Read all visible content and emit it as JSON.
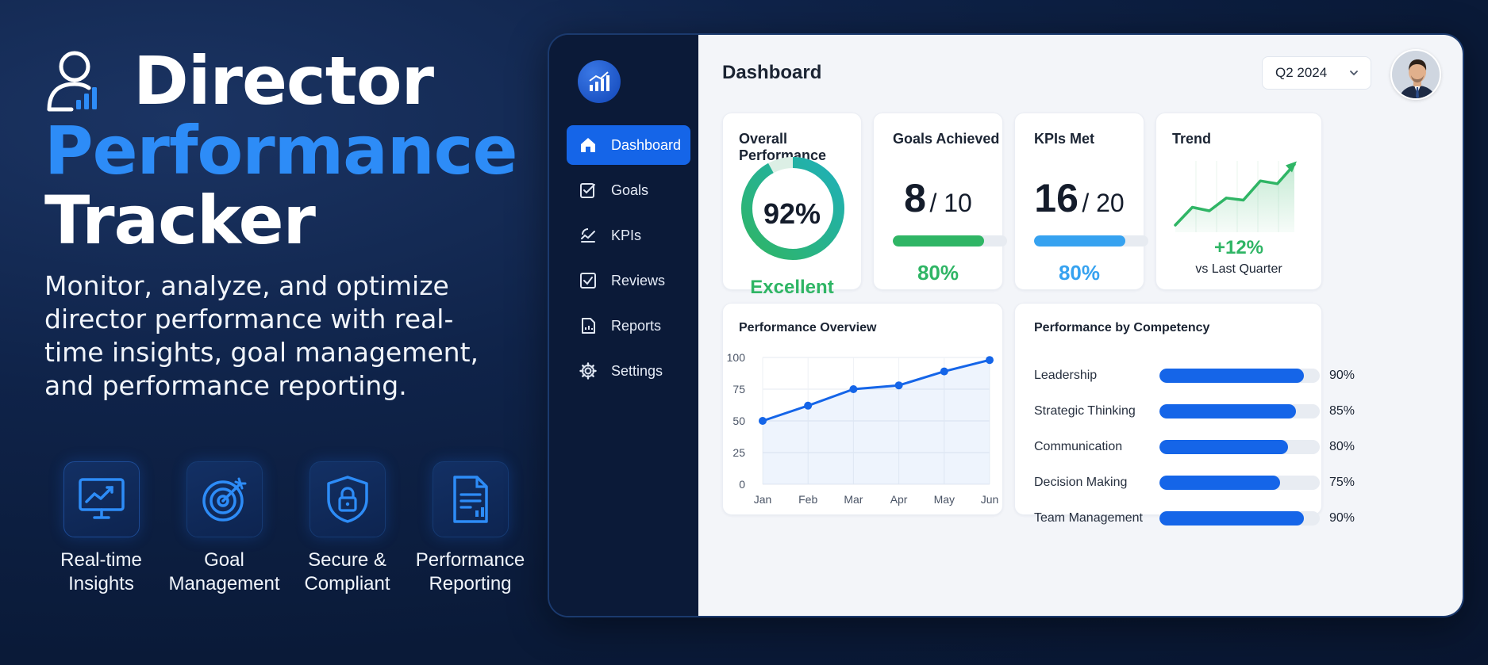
{
  "hero": {
    "title_line1": "Director",
    "title_line2": "Performance",
    "title_line3": "Tracker",
    "subtitle": "Monitor, analyze, and optimize director performance with real-time insights, goal management, and performance reporting."
  },
  "features": [
    {
      "label": "Real-time\nInsights",
      "icon": "monitor-chart-icon"
    },
    {
      "label": "Goal\nManagement",
      "icon": "target-icon"
    },
    {
      "label": "Secure &\nCompliant",
      "icon": "shield-lock-icon"
    },
    {
      "label": "Performance\nReporting",
      "icon": "report-document-icon"
    }
  ],
  "sidebar": {
    "items": [
      {
        "label": "Dashboard",
        "icon": "home-icon",
        "active": true
      },
      {
        "label": "Goals",
        "icon": "checklist-icon"
      },
      {
        "label": "KPIs",
        "icon": "kpi-icon"
      },
      {
        "label": "Reviews",
        "icon": "check-square-icon"
      },
      {
        "label": "Reports",
        "icon": "report-icon"
      },
      {
        "label": "Settings",
        "icon": "gear-icon"
      }
    ]
  },
  "header": {
    "title": "Dashboard",
    "period": "Q2 2024"
  },
  "cards": {
    "overall": {
      "title": "Overall Performance",
      "value": "92%",
      "percent": 92,
      "rating": "Excellent"
    },
    "goals": {
      "title": "Goals Achieved",
      "achieved": "8",
      "total": "/ 10",
      "percent_label": "80%",
      "percent": 80
    },
    "kpis": {
      "title": "KPIs Met",
      "met": "16",
      "total": "/ 20",
      "percent_label": "80%",
      "percent": 80
    },
    "trend": {
      "title": "Trend",
      "change": "+12%",
      "caption": "vs Last Quarter",
      "points": [
        10,
        35,
        30,
        48,
        45,
        72,
        68,
        95
      ]
    }
  },
  "colors": {
    "accent": "#1565e8",
    "green": "#2fb565",
    "light_blue": "#36a2f0",
    "hero_accent": "#2d8cf7"
  },
  "chart_data": [
    {
      "type": "line",
      "title": "Performance Overview",
      "categories": [
        "Jan",
        "Feb",
        "Mar",
        "Apr",
        "May",
        "Jun"
      ],
      "values": [
        50,
        62,
        75,
        78,
        89,
        98
      ],
      "ylim": [
        0,
        100
      ],
      "yticks": [
        "0",
        "25",
        "50",
        "75",
        "100"
      ],
      "grid": true
    },
    {
      "type": "bar",
      "title": "Performance by Competency",
      "orientation": "horizontal",
      "categories": [
        "Leadership",
        "Strategic Thinking",
        "Communication",
        "Decision Making",
        "Team Management"
      ],
      "values": [
        90,
        85,
        80,
        75,
        90
      ],
      "value_labels": [
        "90%",
        "85%",
        "80%",
        "75%",
        "90%"
      ]
    }
  ]
}
